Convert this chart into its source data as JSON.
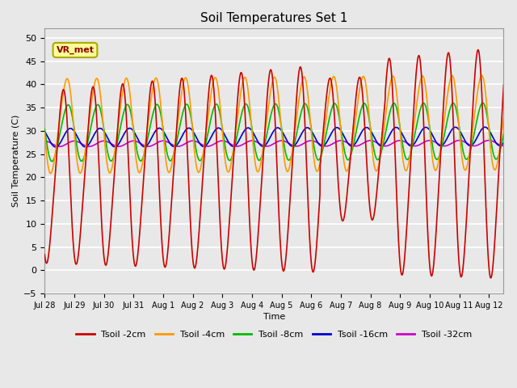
{
  "title": "Soil Temperatures Set 1",
  "xlabel": "Time",
  "ylabel": "Soil Temperature (C)",
  "ylim": [
    -5,
    52
  ],
  "yticks": [
    -5,
    0,
    5,
    10,
    15,
    20,
    25,
    30,
    35,
    40,
    45,
    50
  ],
  "line_colors": {
    "Tsoil -2cm": "#cc0000",
    "Tsoil -4cm": "#ff9900",
    "Tsoil -8cm": "#00bb00",
    "Tsoil -16cm": "#0000cc",
    "Tsoil -32cm": "#cc00cc"
  },
  "annotation_text": "VR_met",
  "background_color": "#e8e8e8",
  "plot_bg_color": "#e8e8e8",
  "grid_color": "#ffffff",
  "n_days": 15.5,
  "xtick_labels": [
    "Jul 28",
    "Jul 29",
    "Jul 30",
    "Jul 31",
    "Aug 1",
    "Aug 2",
    "Aug 3",
    "Aug 4",
    "Aug 5",
    "Aug 6",
    "Aug 7",
    "Aug 8",
    "Aug 9",
    "Aug 10",
    "Aug 11",
    "Aug 12"
  ]
}
